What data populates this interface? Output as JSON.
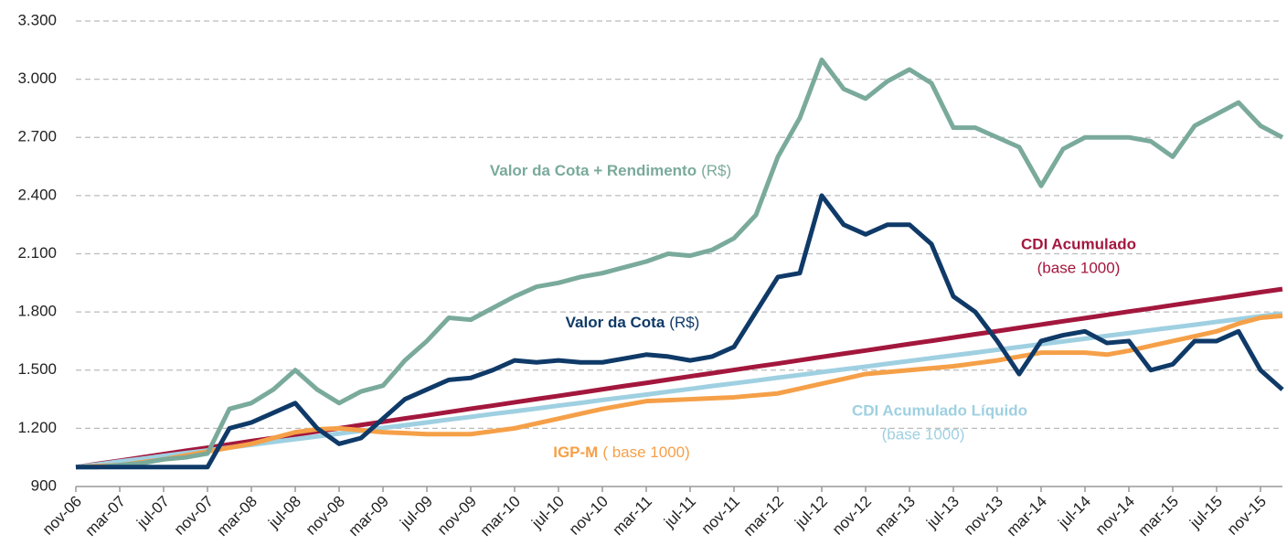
{
  "chart_data": {
    "type": "line",
    "categories": [
      "nov-06",
      null,
      "mar-07",
      null,
      "jul-07",
      null,
      "nov-07",
      null,
      "mar-08",
      null,
      "jul-08",
      null,
      "nov-08",
      null,
      "mar-09",
      null,
      "jul-09",
      null,
      "nov-09",
      null,
      "mar-10",
      null,
      "jul-10",
      null,
      "nov-10",
      null,
      "mar-11",
      null,
      "jul-11",
      null,
      "nov-11",
      null,
      "mar-12",
      null,
      "jul-12",
      null,
      "nov-12",
      null,
      "mar-13",
      null,
      "jul-13",
      null,
      "nov-13",
      null,
      "mar-14",
      null,
      "jul-14",
      null,
      "nov-14",
      null,
      "mar-15",
      null,
      "jul-15",
      null,
      "nov-15",
      null
    ],
    "ylim": [
      900,
      3300
    ],
    "yticks": [
      900,
      {
        "value": 1200,
        "label": "1.200"
      },
      {
        "value": 1500,
        "label": "1.500"
      },
      {
        "value": 1800,
        "label": "1.800"
      },
      {
        "value": 2100,
        "label": "2.100"
      },
      {
        "value": 2400,
        "label": "2.400"
      },
      {
        "value": 2700,
        "label": "2.700"
      },
      {
        "value": 3000,
        "label": "3.000"
      },
      {
        "value": 3300,
        "label": "3.300"
      }
    ],
    "grid": true,
    "series": [
      {
        "name": "CDI Acumulado",
        "note": "(base 1000)",
        "color": "#a3173d",
        "values": [
          1000,
          1017,
          1033,
          1050,
          1067,
          1084,
          1100,
          1117,
          1134,
          1150,
          1167,
          1184,
          1200,
          1217,
          1234,
          1251,
          1267,
          1284,
          1301,
          1317,
          1334,
          1351,
          1367,
          1384,
          1401,
          1418,
          1434,
          1451,
          1468,
          1484,
          1501,
          1518,
          1534,
          1551,
          1568,
          1585,
          1601,
          1618,
          1635,
          1651,
          1668,
          1685,
          1701,
          1718,
          1735,
          1752,
          1768,
          1785,
          1802,
          1818,
          1835,
          1852,
          1868,
          1885,
          1902,
          1918
        ]
      },
      {
        "name": "CDI Acumulado Líquido",
        "note": "(base 1000)",
        "color": "#9fd0e1",
        "values": [
          1000,
          1014,
          1029,
          1043,
          1058,
          1072,
          1086,
          1101,
          1115,
          1130,
          1144,
          1158,
          1173,
          1187,
          1202,
          1216,
          1230,
          1245,
          1259,
          1274,
          1288,
          1302,
          1317,
          1331,
          1346,
          1360,
          1374,
          1389,
          1403,
          1418,
          1432,
          1446,
          1461,
          1475,
          1490,
          1504,
          1518,
          1533,
          1547,
          1562,
          1576,
          1590,
          1605,
          1619,
          1634,
          1648,
          1662,
          1677,
          1691,
          1706,
          1720,
          1734,
          1749,
          1763,
          1778,
          1792
        ]
      },
      {
        "name": "IGP-M",
        "note": "( base 1000)",
        "color": "#f5a048",
        "values": [
          1000,
          1005,
          1010,
          1025,
          1040,
          1060,
          1080,
          1100,
          1120,
          1150,
          1180,
          1195,
          1200,
          1190,
          1180,
          1175,
          1170,
          1170,
          1170,
          1185,
          1200,
          1225,
          1250,
          1275,
          1300,
          1320,
          1340,
          1345,
          1350,
          1355,
          1360,
          1370,
          1380,
          1405,
          1430,
          1455,
          1480,
          1490,
          1500,
          1510,
          1520,
          1535,
          1550,
          1570,
          1590,
          1590,
          1590,
          1580,
          1600,
          1625,
          1650,
          1675,
          1700,
          1740,
          1770,
          1780
        ]
      },
      {
        "name": "Valor da Cota + Rendimento",
        "note": "(R$)",
        "color": "#7aaa9b",
        "values": [
          1000,
          1000,
          1010,
          1020,
          1040,
          1050,
          1070,
          1300,
          1330,
          1400,
          1500,
          1400,
          1330,
          1390,
          1420,
          1550,
          1650,
          1770,
          1760,
          1820,
          1880,
          1930,
          1950,
          1980,
          2000,
          2030,
          2060,
          2100,
          2090,
          2120,
          2180,
          2300,
          2600,
          2800,
          3100,
          2950,
          2900,
          2990,
          3050,
          2980,
          2750,
          2750,
          2700,
          2650,
          2450,
          2640,
          2700,
          2700,
          2700,
          2680,
          2600,
          2760,
          2820,
          2880,
          2760,
          2700
        ]
      },
      {
        "name": "Valor da Cota",
        "note": "(R$)",
        "color": "#0f3a68",
        "values": [
          1000,
          1000,
          1000,
          1000,
          1000,
          1000,
          1000,
          1200,
          1230,
          1280,
          1330,
          1200,
          1120,
          1150,
          1250,
          1350,
          1400,
          1450,
          1460,
          1500,
          1550,
          1540,
          1550,
          1540,
          1540,
          1560,
          1580,
          1570,
          1550,
          1570,
          1620,
          1800,
          1980,
          2000,
          2400,
          2250,
          2200,
          2250,
          2250,
          2150,
          1880,
          1800,
          1650,
          1480,
          1650,
          1680,
          1700,
          1640,
          1650,
          1500,
          1530,
          1650,
          1650,
          1700,
          1500,
          1400
        ]
      }
    ]
  }
}
